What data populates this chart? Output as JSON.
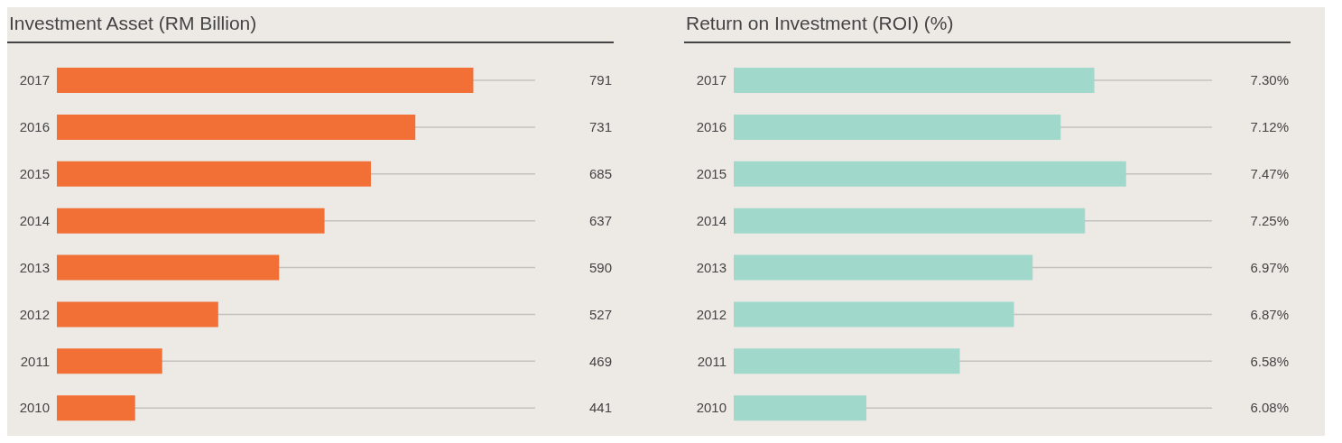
{
  "chart_data": [
    {
      "type": "bar",
      "orientation": "horizontal",
      "title": "Investment Asset (RM Billion)",
      "categories": [
        "2017",
        "2016",
        "2015",
        "2014",
        "2013",
        "2012",
        "2011",
        "2010"
      ],
      "values": [
        791,
        731,
        685,
        637,
        590,
        527,
        469,
        441
      ],
      "color": "#f26f35",
      "xlim": [
        360,
        855
      ],
      "data_labels": true,
      "tick_labels": "y",
      "grid": false,
      "legend": false
    },
    {
      "type": "bar",
      "orientation": "horizontal",
      "title": "Return on Investment (ROI) (%)",
      "categories": [
        "2017",
        "2016",
        "2015",
        "2014",
        "2013",
        "2012",
        "2011",
        "2010"
      ],
      "values": [
        7.3,
        7.12,
        7.47,
        7.25,
        6.97,
        6.87,
        6.58,
        6.08
      ],
      "value_labels": [
        "7.30%",
        "7.12%",
        "7.47%",
        "7.25%",
        "6.97%",
        "6.87%",
        "6.58%",
        "6.08%"
      ],
      "color": "#a0d8cb",
      "xlim": [
        5.37,
        7.93
      ],
      "tick_labels": "y",
      "grid": false,
      "legend": false
    }
  ]
}
